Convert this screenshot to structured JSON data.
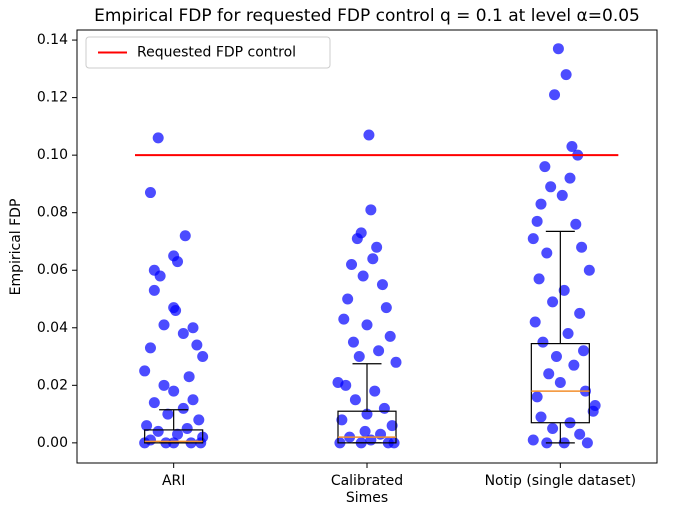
{
  "chart_data": {
    "type": "box",
    "title": "Empirical FDP for requested FDP control q = 0.1 at level α=0.05",
    "ylabel": "Empirical FDP",
    "categories": [
      "ARI",
      "Calibrated\nSimes",
      "Notip (single dataset)"
    ],
    "xlim": [
      -0.5,
      2.5
    ],
    "ylim": [
      -0.007,
      0.1435
    ],
    "yticks": [
      {
        "value": 0,
        "label": "0.00"
      },
      {
        "value": 0.02,
        "label": "0.02"
      },
      {
        "value": 0.04,
        "label": "0.04"
      },
      {
        "value": 0.06,
        "label": "0.06"
      },
      {
        "value": 0.08,
        "label": "0.08"
      },
      {
        "value": 0.1,
        "label": "0.10"
      },
      {
        "value": 0.12,
        "label": "0.12"
      },
      {
        "value": 0.14,
        "label": "0.14"
      }
    ],
    "boxes": [
      {
        "whislo": 0,
        "q1": 0,
        "med": 0.0005,
        "q3": 0.0045,
        "whishi": 0.0115
      },
      {
        "whislo": 0,
        "q1": 0,
        "med": 0.002,
        "q3": 0.011,
        "whishi": 0.0275
      },
      {
        "whislo": 0,
        "q1": 0.007,
        "med": 0.018,
        "q3": 0.0345,
        "whishi": 0.0735
      }
    ],
    "box_color": "#000000",
    "median_color": "#f28e2b",
    "points": {
      "color": "#0000ff",
      "x": [
        -0.08,
        -0.12,
        0.06,
        -0.1,
        0.0,
        0.02,
        -0.07,
        -0.1,
        0.0,
        0.01,
        -0.05,
        0.1,
        0.05,
        0.12,
        -0.12,
        0.15,
        -0.15,
        0.08,
        -0.05,
        0.0,
        0.1,
        -0.1,
        0.05,
        -0.03,
        0.13,
        -0.14,
        0.07,
        -0.08,
        0.02,
        0.15,
        -0.12,
        0.09,
        -0.04,
        0.14,
        -0.15,
        0.0,
        1.01,
        1.02,
        0.97,
        0.95,
        1.05,
        1.03,
        0.92,
        0.98,
        1.08,
        0.9,
        1.1,
        0.88,
        1.0,
        1.12,
        0.93,
        1.06,
        0.96,
        1.15,
        0.85,
        0.89,
        1.04,
        0.94,
        1.09,
        1.0,
        0.87,
        1.13,
        0.99,
        1.07,
        0.91,
        1.02,
        0.86,
        1.11,
        0.97,
        1.14,
        1.99,
        2.03,
        1.97,
        2.06,
        2.09,
        1.92,
        2.05,
        1.95,
        2.01,
        1.9,
        1.88,
        2.08,
        1.86,
        2.11,
        1.93,
        2.15,
        1.89,
        2.02,
        1.96,
        2.1,
        1.87,
        2.04,
        1.91,
        2.12,
        1.98,
        2.07,
        1.94,
        2.0,
        2.13,
        1.88,
        2.18,
        2.17,
        1.9,
        2.05,
        1.96,
        2.1,
        1.86,
        2.14,
        1.93,
        2.02
      ],
      "values": [
        0.106,
        0.087,
        0.072,
        0.06,
        0.065,
        0.063,
        0.058,
        0.053,
        0.047,
        0.046,
        0.041,
        0.04,
        0.038,
        0.034,
        0.033,
        0.03,
        0.025,
        0.023,
        0.02,
        0.018,
        0.015,
        0.014,
        0.012,
        0.01,
        0.008,
        0.006,
        0.005,
        0.004,
        0.003,
        0.002,
        0.001,
        0,
        0,
        0,
        0,
        0,
        0.107,
        0.081,
        0.073,
        0.071,
        0.068,
        0.064,
        0.062,
        0.058,
        0.055,
        0.05,
        0.047,
        0.043,
        0.041,
        0.037,
        0.035,
        0.032,
        0.03,
        0.028,
        0.021,
        0.02,
        0.018,
        0.015,
        0.012,
        0.01,
        0.008,
        0.006,
        0.004,
        0.003,
        0.002,
        0.001,
        0,
        0,
        0,
        0,
        0.137,
        0.128,
        0.121,
        0.103,
        0.1,
        0.096,
        0.092,
        0.089,
        0.086,
        0.083,
        0.077,
        0.076,
        0.071,
        0.068,
        0.066,
        0.06,
        0.057,
        0.053,
        0.049,
        0.045,
        0.042,
        0.038,
        0.035,
        0.032,
        0.03,
        0.027,
        0.024,
        0.021,
        0.018,
        0.016,
        0.013,
        0.011,
        0.009,
        0.007,
        0.005,
        0.003,
        0.001,
        0,
        0,
        0
      ]
    },
    "reference_line": {
      "name": "Requested FDP control",
      "value": 0.1,
      "x": [
        -0.2,
        2.3
      ],
      "color": "#ff0000"
    },
    "legend": "upper left"
  }
}
